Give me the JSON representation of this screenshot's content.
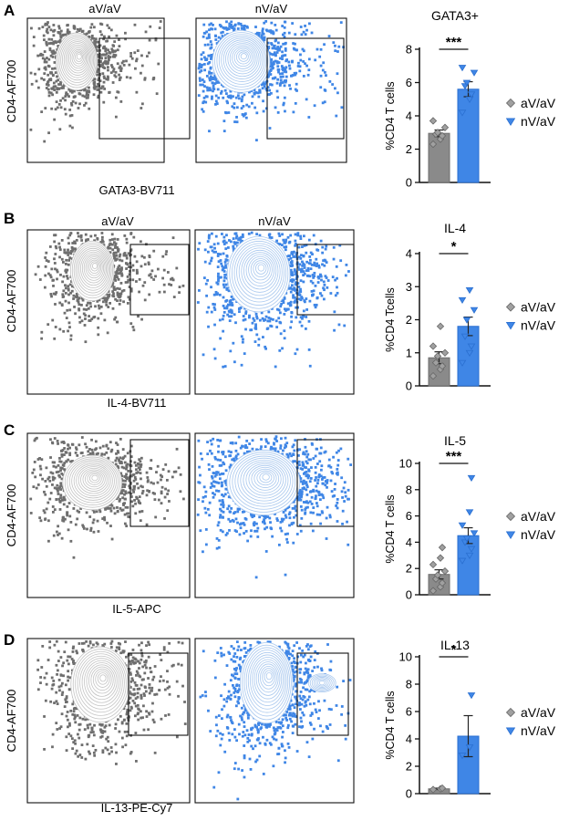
{
  "colors": {
    "gray": "#8a8a8a",
    "gray_dark": "#6e6e6e",
    "blue": "#3f86e6",
    "blue_dark": "#2a6fd0",
    "contour_gray": "#c4c4c4",
    "contour_blue": "#a9c8ee",
    "axis": "#111111"
  },
  "legend_icons": {
    "first": "diamond",
    "second": "triangle-down"
  },
  "chart_data": [
    {
      "type": "bar",
      "panel_letter": "A",
      "flow_titles": [
        "aV/aV",
        "nV/aV"
      ],
      "flow_ylabel": "CD4-AF700",
      "flow_xlabel": "GATA3-BV711",
      "title": "GATA3+",
      "ylabel": "%CD4 T cells",
      "ylim": [
        0,
        8
      ],
      "yticks": [
        0,
        2,
        4,
        6,
        8
      ],
      "significance": "***",
      "categories": [
        "aV/aV",
        "nV/aV"
      ],
      "series": [
        {
          "name": "aV/aV",
          "mean": 2.95,
          "sem": 0.2,
          "points": [
            2.3,
            2.6,
            2.8,
            2.9,
            3.0,
            3.3,
            3.7
          ]
        },
        {
          "name": "nV/aV",
          "mean": 5.6,
          "sem": 0.45,
          "points": [
            4.2,
            5.0,
            5.3,
            5.8,
            6.0,
            6.6,
            6.9
          ]
        }
      ]
    },
    {
      "type": "bar",
      "panel_letter": "B",
      "flow_titles": [
        "aV/aV",
        "nV/aV"
      ],
      "flow_ylabel": "CD4-AF700",
      "flow_xlabel": "IL-4-BV711",
      "title": "IL-4",
      "ylabel": "%CD4 Tcells",
      "ylim": [
        0,
        4
      ],
      "yticks": [
        0,
        1,
        2,
        3,
        4
      ],
      "significance": "*",
      "categories": [
        "aV/aV",
        "nV/aV"
      ],
      "series": [
        {
          "name": "aV/aV",
          "mean": 0.85,
          "sem": 0.18,
          "points": [
            0.3,
            0.5,
            0.6,
            0.7,
            0.9,
            1.0,
            1.2,
            1.8
          ]
        },
        {
          "name": "nV/aV",
          "mean": 1.8,
          "sem": 0.28,
          "points": [
            0.7,
            1.0,
            1.2,
            1.5,
            2.0,
            2.3,
            2.6,
            2.9
          ]
        }
      ]
    },
    {
      "type": "bar",
      "panel_letter": "C",
      "flow_titles": [],
      "flow_ylabel": "CD4-AF700",
      "flow_xlabel": "IL-5-APC",
      "title": "IL-5",
      "ylabel": "%CD4 T cells",
      "ylim": [
        0,
        10
      ],
      "yticks": [
        0,
        2,
        4,
        6,
        8,
        10
      ],
      "significance": "***",
      "categories": [
        "aV/aV",
        "nV/aV"
      ],
      "series": [
        {
          "name": "aV/aV",
          "mean": 1.55,
          "sem": 0.35,
          "points": [
            0.3,
            0.6,
            0.9,
            1.2,
            1.5,
            1.8,
            2.3,
            2.8,
            3.6
          ]
        },
        {
          "name": "nV/aV",
          "mean": 4.5,
          "sem": 0.6,
          "points": [
            2.6,
            3.0,
            3.5,
            4.0,
            4.3,
            4.7,
            5.3,
            6.3,
            8.9
          ]
        }
      ]
    },
    {
      "type": "bar",
      "panel_letter": "D",
      "flow_titles": [],
      "flow_ylabel": "CD4-AF700",
      "flow_xlabel": "IL-13-PE-Cy7",
      "title": "IL-13",
      "ylabel": "%CD4 T cells",
      "ylim": [
        0,
        10
      ],
      "yticks": [
        0,
        2,
        4,
        6,
        8,
        10
      ],
      "significance": "*",
      "categories": [
        "aV/aV",
        "nV/aV"
      ],
      "series": [
        {
          "name": "aV/aV",
          "mean": 0.35,
          "sem": 0.05,
          "points": [
            0.3,
            0.35,
            0.4
          ]
        },
        {
          "name": "nV/aV",
          "mean": 4.2,
          "sem": 1.5,
          "points": [
            2.8,
            3.4,
            7.2
          ]
        }
      ]
    }
  ]
}
